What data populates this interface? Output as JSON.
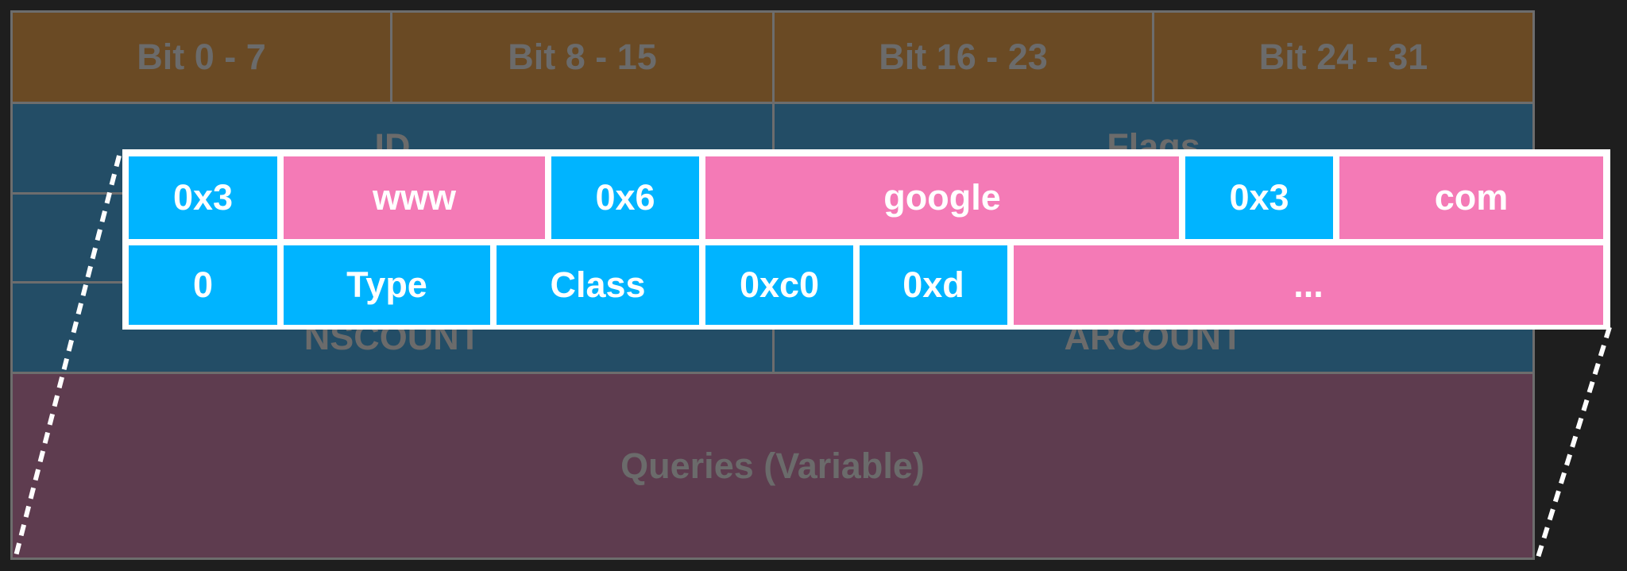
{
  "colors": {
    "background": "#1e1e1e",
    "header_fill": "#6a4a24",
    "header_fields_fill": "#234d66",
    "queries_fill": "#5e3c4f",
    "dim_text": "#6b6b6b",
    "byte_blue": "#00b4ff",
    "label_pink": "#f47ab6",
    "overlay_text": "#ffffff"
  },
  "bit_header": {
    "labels": [
      "Bit 0 - 7",
      "Bit 8 - 15",
      "Bit 16 - 23",
      "Bit 24 - 31"
    ]
  },
  "dns_header": {
    "id": "ID",
    "flags": "Flags",
    "nscount": "NSCOUNT",
    "arcount": "ARCOUNT"
  },
  "queries": {
    "label": "Queries (Variable)"
  },
  "query_bytes": {
    "row1": [
      {
        "text": "0x3",
        "kind": "length"
      },
      {
        "text": "www",
        "kind": "label"
      },
      {
        "text": "0x6",
        "kind": "length"
      },
      {
        "text": "google",
        "kind": "label"
      },
      {
        "text": "0x3",
        "kind": "length"
      },
      {
        "text": "com",
        "kind": "label"
      }
    ],
    "row2": [
      {
        "text": "0",
        "kind": "length"
      },
      {
        "text": "Type",
        "kind": "length"
      },
      {
        "text": "Class",
        "kind": "length"
      },
      {
        "text": "0xc0",
        "kind": "length"
      },
      {
        "text": "0xd",
        "kind": "length"
      },
      {
        "text": "...",
        "kind": "label"
      }
    ]
  }
}
